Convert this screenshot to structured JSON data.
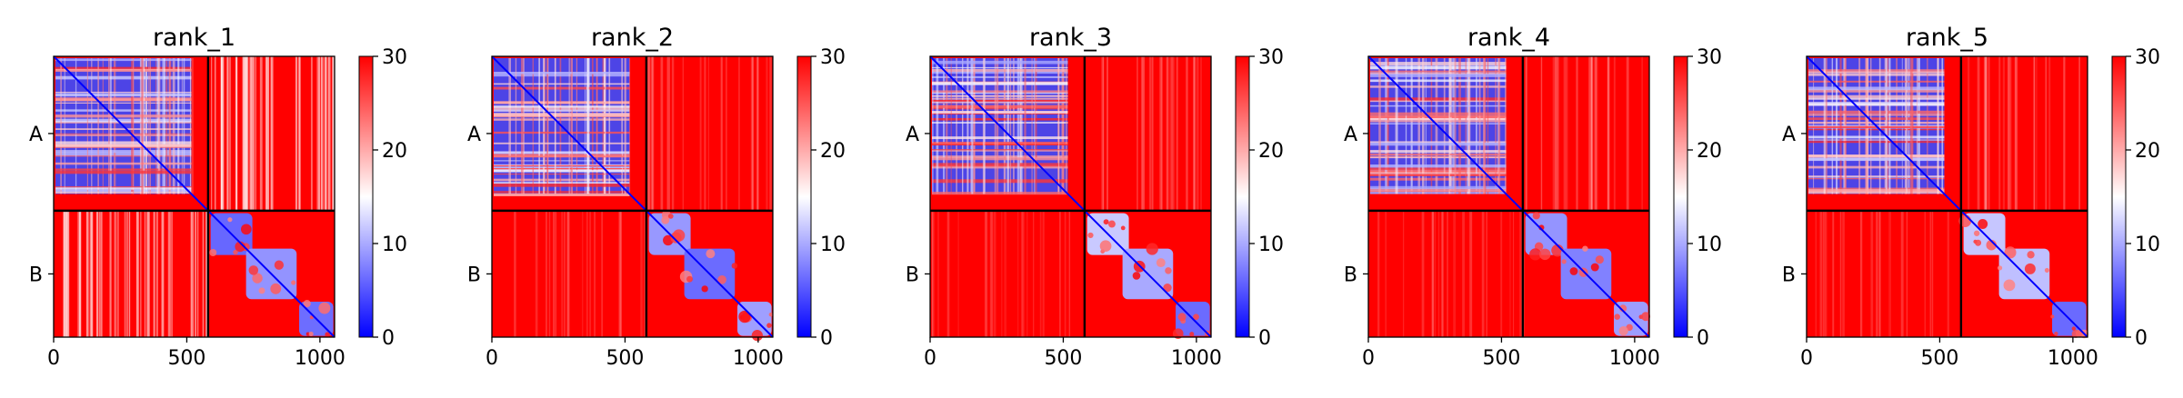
{
  "chart_data": [
    {
      "type": "heatmap",
      "title": "rank_1",
      "chains": [
        {
          "label": "A",
          "start": 0,
          "end": 580
        },
        {
          "label": "B",
          "start": 580,
          "end": 1055
        }
      ],
      "xlim": [
        0,
        1055
      ],
      "xticks": [
        0,
        500,
        1000
      ],
      "yticks": [
        "A",
        "B"
      ],
      "colorbar": {
        "ticks": [
          0,
          10,
          20,
          30
        ],
        "vmin": 0,
        "vmax": 30,
        "colors": [
          "#0000ff",
          "#ffffff",
          "#ff0000"
        ]
      },
      "interchain_pattern": "bright_stripes"
    },
    {
      "type": "heatmap",
      "title": "rank_2",
      "chains": [
        {
          "label": "A",
          "start": 0,
          "end": 580
        },
        {
          "label": "B",
          "start": 580,
          "end": 1055
        }
      ],
      "xlim": [
        0,
        1055
      ],
      "xticks": [
        0,
        500,
        1000
      ],
      "yticks": [
        "A",
        "B"
      ],
      "colorbar": {
        "ticks": [
          0,
          10,
          20,
          30
        ],
        "vmin": 0,
        "vmax": 30,
        "colors": [
          "#0000ff",
          "#ffffff",
          "#ff0000"
        ]
      },
      "interchain_pattern": "faint_stripes"
    },
    {
      "type": "heatmap",
      "title": "rank_3",
      "chains": [
        {
          "label": "A",
          "start": 0,
          "end": 580
        },
        {
          "label": "B",
          "start": 580,
          "end": 1055
        }
      ],
      "xlim": [
        0,
        1055
      ],
      "xticks": [
        0,
        500,
        1000
      ],
      "yticks": [
        "A",
        "B"
      ],
      "colorbar": {
        "ticks": [
          0,
          10,
          20,
          30
        ],
        "vmin": 0,
        "vmax": 30,
        "colors": [
          "#0000ff",
          "#ffffff",
          "#ff0000"
        ]
      },
      "interchain_pattern": "faint_stripes"
    },
    {
      "type": "heatmap",
      "title": "rank_4",
      "chains": [
        {
          "label": "A",
          "start": 0,
          "end": 580
        },
        {
          "label": "B",
          "start": 580,
          "end": 1055
        }
      ],
      "xlim": [
        0,
        1055
      ],
      "xticks": [
        0,
        500,
        1000
      ],
      "yticks": [
        "A",
        "B"
      ],
      "colorbar": {
        "ticks": [
          0,
          10,
          20,
          30
        ],
        "vmin": 0,
        "vmax": 30,
        "colors": [
          "#0000ff",
          "#ffffff",
          "#ff0000"
        ]
      },
      "interchain_pattern": "faint_stripes"
    },
    {
      "type": "heatmap",
      "title": "rank_5",
      "chains": [
        {
          "label": "A",
          "start": 0,
          "end": 580
        },
        {
          "label": "B",
          "start": 580,
          "end": 1055
        }
      ],
      "xlim": [
        0,
        1055
      ],
      "xticks": [
        0,
        500,
        1000
      ],
      "yticks": [
        "A",
        "B"
      ],
      "colorbar": {
        "ticks": [
          0,
          10,
          20,
          30
        ],
        "vmin": 0,
        "vmax": 30,
        "colors": [
          "#0000ff",
          "#ffffff",
          "#ff0000"
        ]
      },
      "interchain_pattern": "faint_stripes"
    }
  ]
}
